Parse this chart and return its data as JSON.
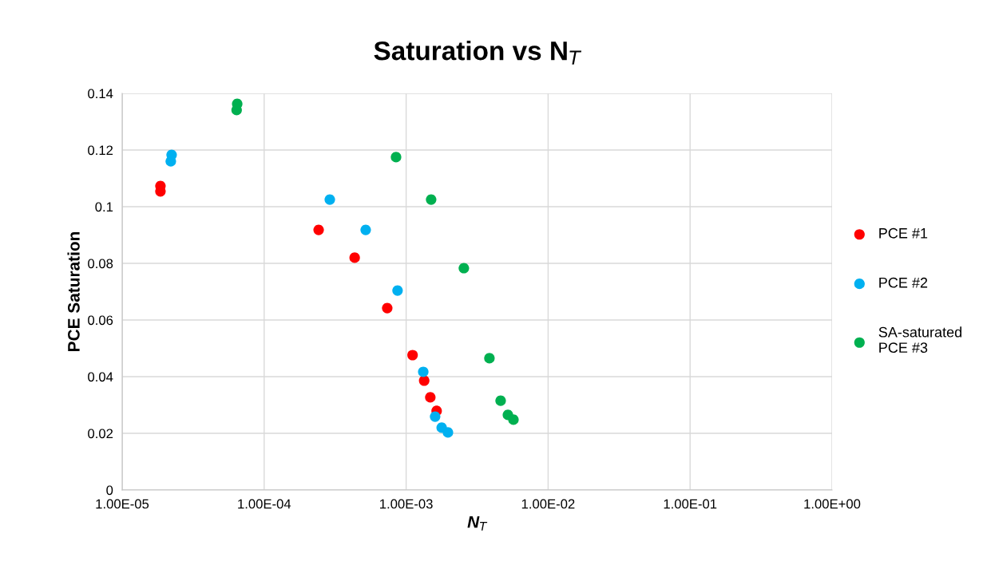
{
  "chart_data": {
    "type": "scatter",
    "title": "Saturation vs N$_{T}$",
    "xlabel": "N$_{T}$",
    "ylabel": "PCE Saturation",
    "log": "x",
    "grid": true,
    "legend": "right",
    "marker": "circle",
    "xlim": [
      1e-05,
      1
    ],
    "xticks": [
      {
        "value": 1e-05,
        "label": "1.00E-05"
      },
      {
        "value": 0.0001,
        "label": "1.00E-04"
      },
      {
        "value": 0.001,
        "label": "1.00E-03"
      },
      {
        "value": 0.01,
        "label": "1.00E-02"
      },
      {
        "value": 0.1,
        "label": "1.00E-01"
      },
      {
        "value": 1,
        "label": "1.00E+00"
      }
    ],
    "ylim": [
      0,
      0.14
    ],
    "yticks": [
      0,
      0.02,
      0.04,
      0.06,
      0.08,
      0.1,
      0.12,
      0.14
    ],
    "series": [
      {
        "name": "PCE #1",
        "color": "#ff0000",
        "x": [
          1.86e-05,
          1.86e-05,
          0.000242,
          0.000434,
          0.000736,
          0.00111,
          0.00134,
          0.00148,
          0.00164
        ],
        "values": [
          0.1073,
          0.1054,
          0.0918,
          0.082,
          0.0642,
          0.0476,
          0.0386,
          0.0327,
          0.0279
        ]
      },
      {
        "name": "PCE #2",
        "color": "#00b0f0",
        "x": [
          2.23e-05,
          2.2e-05,
          0.00029,
          0.000519,
          0.00087,
          0.00132,
          0.0016,
          0.00178,
          0.00197
        ],
        "values": [
          0.1183,
          0.116,
          0.1025,
          0.0918,
          0.0704,
          0.0417,
          0.0259,
          0.022,
          0.0203
        ]
      },
      {
        "name": "SA-saturated\nPCE #3",
        "color": "#00b050",
        "x": [
          6.46e-05,
          6.4e-05,
          0.000849,
          0.0015,
          0.00255,
          0.00386,
          0.00463,
          0.00521,
          0.0057
        ],
        "values": [
          0.1363,
          0.1341,
          0.1175,
          0.1025,
          0.0783,
          0.0465,
          0.0315,
          0.0265,
          0.0248
        ]
      }
    ]
  }
}
